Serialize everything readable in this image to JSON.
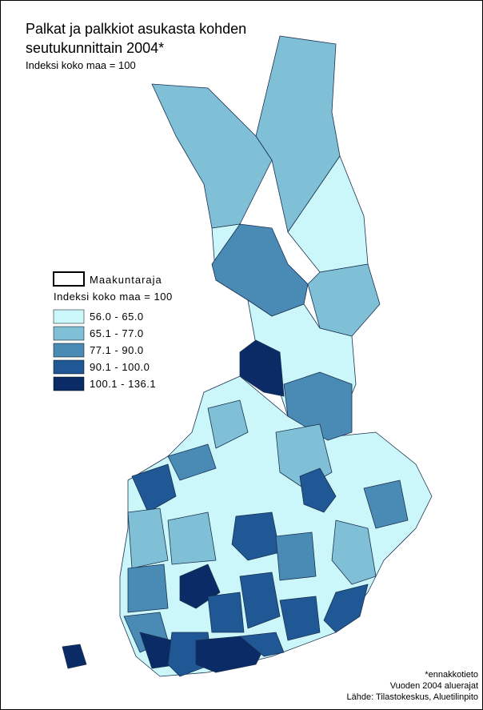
{
  "title": [
    "Palkat ja palkkiot asukasta kohden",
    "seutukunnittain  2004*"
  ],
  "subtitle": "Indeksi koko maa = 100",
  "legend": {
    "boundary": "Maakuntaraja",
    "title": "Indeksi koko maa = 100",
    "classes": [
      {
        "label": "56.0 - 65.0",
        "color": "#ccf7fa"
      },
      {
        "label": "65.1 - 77.0",
        "color": "#80c0d6"
      },
      {
        "label": "77.1 - 90.0",
        "color": "#4a8bb5"
      },
      {
        "label": "90.1 - 100.0",
        "color": "#1f5894"
      },
      {
        "label": "100.1 - 136.1",
        "color": "#0b2b66"
      }
    ]
  },
  "notes": [
    "*ennakkotieto",
    "Vuoden 2004 aluerajat",
    "Lähde: Tilastokeskus, Aluetilinpito"
  ]
}
